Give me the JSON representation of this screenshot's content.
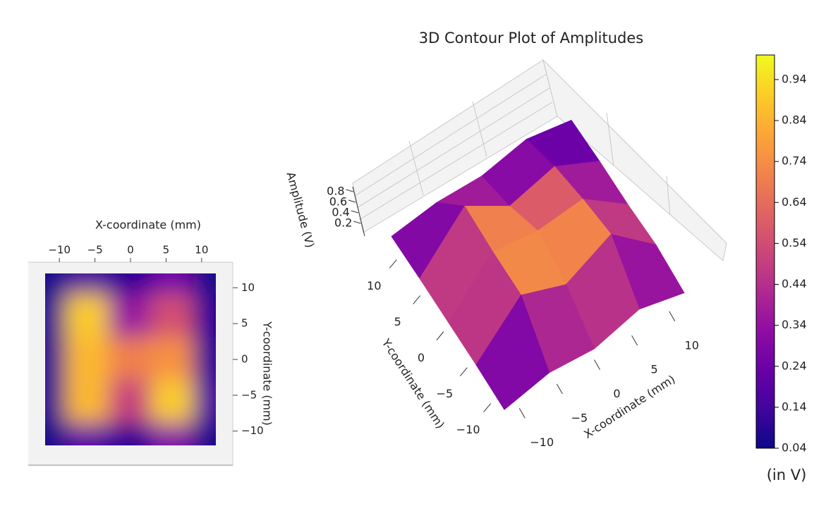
{
  "chart_data": [
    {
      "type": "heatmap",
      "xlabel": "X-coordinate (mm)",
      "ylabel": "Y-coordinate (mm)",
      "x": [
        -12,
        -6,
        0,
        6,
        12
      ],
      "y": [
        12,
        6,
        0,
        -6,
        -12
      ],
      "z": [
        [
          0.06,
          0.15,
          0.1,
          0.25,
          0.06
        ],
        [
          0.08,
          0.9,
          0.35,
          0.55,
          0.1
        ],
        [
          0.08,
          0.85,
          0.7,
          0.75,
          0.1
        ],
        [
          0.08,
          0.85,
          0.5,
          0.9,
          0.15
        ],
        [
          0.05,
          0.2,
          0.1,
          0.3,
          0.06
        ]
      ],
      "xlim": [
        -12,
        12
      ],
      "ylim": [
        -12,
        12
      ],
      "xticks": [
        {
          "value": -10,
          "label": "−10"
        },
        {
          "value": -5,
          "label": "−5"
        },
        0,
        5,
        10
      ],
      "yticks": [
        10,
        5,
        0,
        {
          "value": -5,
          "label": "−5"
        },
        {
          "value": -10,
          "label": "−10"
        }
      ],
      "colormap": "plasma",
      "clim": [
        0.04,
        1.0
      ]
    },
    {
      "type": "surface3d",
      "title": "3D Contour Plot of Amplitudes",
      "xlabel": "X-coordinate (mm)",
      "ylabel": "Y-coordinate (mm)",
      "zlabel": "Amplitude (V)",
      "x": [
        -12,
        -6,
        0,
        6,
        12
      ],
      "y": [
        12,
        6,
        0,
        -6,
        -12
      ],
      "z": [
        [
          0.06,
          0.15,
          0.1,
          0.25,
          0.06
        ],
        [
          0.08,
          0.9,
          0.35,
          0.55,
          0.1
        ],
        [
          0.08,
          0.85,
          0.7,
          0.75,
          0.1
        ],
        [
          0.08,
          0.85,
          0.5,
          0.9,
          0.15
        ],
        [
          0.05,
          0.2,
          0.1,
          0.3,
          0.06
        ]
      ],
      "xlim": [
        -12,
        12
      ],
      "ylim": [
        -12,
        12
      ],
      "zlim": [
        0,
        1
      ],
      "xticks": [
        {
          "value": -10,
          "label": "−10"
        },
        {
          "value": -5,
          "label": "−5"
        },
        0,
        5,
        10
      ],
      "yticks": [
        10,
        5,
        0,
        {
          "value": -5,
          "label": "−5"
        },
        {
          "value": -10,
          "label": "−10"
        }
      ],
      "zticks": [
        0.2,
        0.4,
        0.6,
        0.8
      ],
      "colormap": "plasma",
      "clim": [
        0.04,
        1.0
      ]
    },
    {
      "type": "colorbar",
      "colormap": "plasma",
      "clim": [
        0.04,
        1.0
      ],
      "ticks": [
        0.04,
        0.14,
        0.24,
        0.34,
        0.44,
        0.54,
        0.64,
        0.74,
        0.84,
        0.94
      ],
      "label": "(in V)"
    }
  ]
}
